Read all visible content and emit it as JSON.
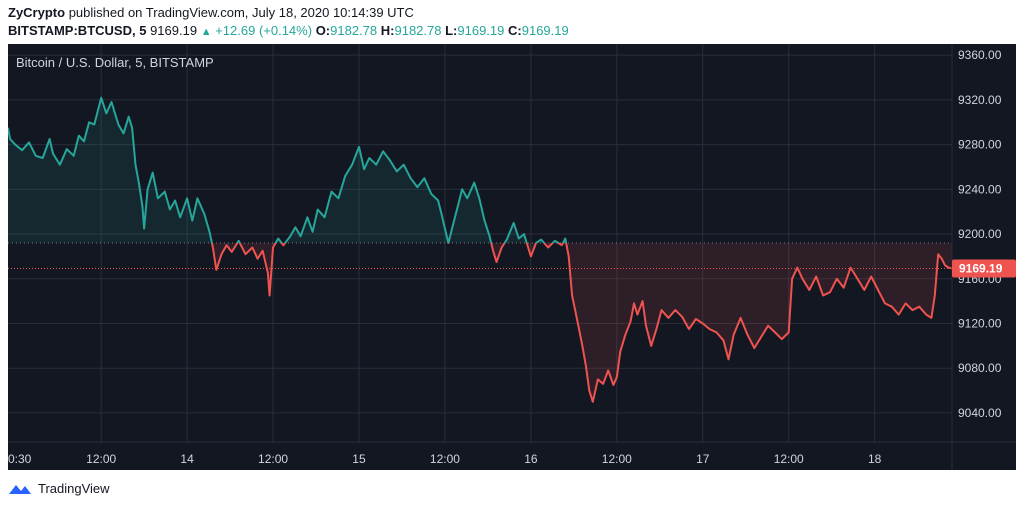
{
  "header": {
    "publisher": "ZyCrypto",
    "published_text": "published on TradingView.com, July 18, 2020 10:14:39 UTC",
    "symbol": "BITSTAMP:BTCUSD, 5",
    "last": "9169.19",
    "change": "+12.69 (+0.14%)",
    "o_label": "O:",
    "o_value": "9182.78",
    "h_label": "H:",
    "h_value": "9182.78",
    "l_label": "L:",
    "l_value": "9169.19",
    "c_label": "C:",
    "c_value": "9169.19"
  },
  "footer": {
    "brand": "TradingView",
    "logo_icon": "tradingview-logo-icon"
  },
  "chart_data": {
    "type": "area",
    "title": "Bitcoin / U.S. Dollar, 5, BITSTAMP",
    "baseline": 9192,
    "current_price": 9169.19,
    "current_price_label": "9169.19",
    "ylim": [
      9014,
      9370
    ],
    "yticks": [
      9040,
      9080,
      9120,
      9160,
      9200,
      9240,
      9280,
      9320,
      9360
    ],
    "ytick_labels": [
      "9040.00",
      "9080.00",
      "9120.00",
      "9160.00",
      "9200.00",
      "9240.00",
      "9280.00",
      "9320.00",
      "9360.00"
    ],
    "xlim": [
      12.958,
      18.45
    ],
    "xticks": [
      {
        "x": 12.958,
        "label": "0:30"
      },
      {
        "x": 13.5,
        "label": "12:00"
      },
      {
        "x": 14.0,
        "label": "14"
      },
      {
        "x": 14.5,
        "label": "12:00"
      },
      {
        "x": 15.0,
        "label": "15"
      },
      {
        "x": 15.5,
        "label": "12:00"
      },
      {
        "x": 16.0,
        "label": "16"
      },
      {
        "x": 16.5,
        "label": "12:00"
      },
      {
        "x": 17.0,
        "label": "17"
      },
      {
        "x": 17.5,
        "label": "12:00"
      },
      {
        "x": 18.0,
        "label": "18"
      }
    ],
    "colors": {
      "up": "#26a69a",
      "down": "#ef5350",
      "background": "#131722",
      "grid": "#2a2e39",
      "axis_text": "#d1d4dc"
    },
    "points": [
      [
        12.958,
        9295
      ],
      [
        12.97,
        9285
      ],
      [
        13.0,
        9280
      ],
      [
        13.04,
        9275
      ],
      [
        13.08,
        9282
      ],
      [
        13.12,
        9270
      ],
      [
        13.16,
        9268
      ],
      [
        13.2,
        9285
      ],
      [
        13.22,
        9272
      ],
      [
        13.26,
        9262
      ],
      [
        13.3,
        9276
      ],
      [
        13.34,
        9270
      ],
      [
        13.37,
        9288
      ],
      [
        13.4,
        9283
      ],
      [
        13.43,
        9300
      ],
      [
        13.46,
        9298
      ],
      [
        13.5,
        9322
      ],
      [
        13.53,
        9308
      ],
      [
        13.56,
        9318
      ],
      [
        13.6,
        9298
      ],
      [
        13.63,
        9290
      ],
      [
        13.66,
        9305
      ],
      [
        13.68,
        9295
      ],
      [
        13.7,
        9262
      ],
      [
        13.72,
        9245
      ],
      [
        13.74,
        9225
      ],
      [
        13.75,
        9205
      ],
      [
        13.77,
        9240
      ],
      [
        13.8,
        9255
      ],
      [
        13.83,
        9232
      ],
      [
        13.87,
        9238
      ],
      [
        13.9,
        9222
      ],
      [
        13.93,
        9230
      ],
      [
        13.96,
        9215
      ],
      [
        14.0,
        9232
      ],
      [
        14.03,
        9212
      ],
      [
        14.06,
        9232
      ],
      [
        14.1,
        9218
      ],
      [
        14.13,
        9202
      ],
      [
        14.15,
        9188
      ],
      [
        14.17,
        9168
      ],
      [
        14.2,
        9182
      ],
      [
        14.23,
        9190
      ],
      [
        14.26,
        9184
      ],
      [
        14.3,
        9194
      ],
      [
        14.34,
        9182
      ],
      [
        14.38,
        9188
      ],
      [
        14.41,
        9178
      ],
      [
        14.44,
        9185
      ],
      [
        14.47,
        9165
      ],
      [
        14.48,
        9145
      ],
      [
        14.5,
        9188
      ],
      [
        14.53,
        9196
      ],
      [
        14.56,
        9190
      ],
      [
        14.6,
        9198
      ],
      [
        14.63,
        9206
      ],
      [
        14.66,
        9198
      ],
      [
        14.7,
        9215
      ],
      [
        14.73,
        9202
      ],
      [
        14.76,
        9222
      ],
      [
        14.8,
        9215
      ],
      [
        14.84,
        9238
      ],
      [
        14.88,
        9232
      ],
      [
        14.92,
        9252
      ],
      [
        14.96,
        9262
      ],
      [
        15.0,
        9278
      ],
      [
        15.03,
        9258
      ],
      [
        15.06,
        9268
      ],
      [
        15.1,
        9262
      ],
      [
        15.14,
        9274
      ],
      [
        15.18,
        9266
      ],
      [
        15.22,
        9256
      ],
      [
        15.26,
        9262
      ],
      [
        15.3,
        9250
      ],
      [
        15.34,
        9242
      ],
      [
        15.38,
        9250
      ],
      [
        15.42,
        9236
      ],
      [
        15.46,
        9230
      ],
      [
        15.48,
        9218
      ],
      [
        15.5,
        9205
      ],
      [
        15.52,
        9192
      ],
      [
        15.55,
        9210
      ],
      [
        15.58,
        9228
      ],
      [
        15.6,
        9240
      ],
      [
        15.63,
        9232
      ],
      [
        15.67,
        9246
      ],
      [
        15.7,
        9232
      ],
      [
        15.73,
        9212
      ],
      [
        15.76,
        9198
      ],
      [
        15.78,
        9185
      ],
      [
        15.8,
        9175
      ],
      [
        15.83,
        9188
      ],
      [
        15.86,
        9195
      ],
      [
        15.9,
        9210
      ],
      [
        15.93,
        9196
      ],
      [
        15.96,
        9200
      ],
      [
        16.0,
        9180
      ],
      [
        16.03,
        9192
      ],
      [
        16.06,
        9195
      ],
      [
        16.1,
        9188
      ],
      [
        16.14,
        9194
      ],
      [
        16.18,
        9190
      ],
      [
        16.2,
        9196
      ],
      [
        16.22,
        9180
      ],
      [
        16.24,
        9145
      ],
      [
        16.26,
        9130
      ],
      [
        16.28,
        9115
      ],
      [
        16.3,
        9100
      ],
      [
        16.32,
        9082
      ],
      [
        16.34,
        9060
      ],
      [
        16.36,
        9050
      ],
      [
        16.39,
        9070
      ],
      [
        16.42,
        9066
      ],
      [
        16.45,
        9078
      ],
      [
        16.48,
        9065
      ],
      [
        16.5,
        9072
      ],
      [
        16.52,
        9095
      ],
      [
        16.55,
        9110
      ],
      [
        16.58,
        9122
      ],
      [
        16.6,
        9138
      ],
      [
        16.62,
        9128
      ],
      [
        16.65,
        9140
      ],
      [
        16.67,
        9118
      ],
      [
        16.7,
        9100
      ],
      [
        16.73,
        9115
      ],
      [
        16.76,
        9132
      ],
      [
        16.8,
        9125
      ],
      [
        16.84,
        9132
      ],
      [
        16.88,
        9126
      ],
      [
        16.92,
        9115
      ],
      [
        16.96,
        9124
      ],
      [
        17.0,
        9120
      ],
      [
        17.04,
        9115
      ],
      [
        17.08,
        9112
      ],
      [
        17.12,
        9105
      ],
      [
        17.15,
        9088
      ],
      [
        17.18,
        9110
      ],
      [
        17.22,
        9125
      ],
      [
        17.26,
        9110
      ],
      [
        17.3,
        9098
      ],
      [
        17.34,
        9108
      ],
      [
        17.38,
        9118
      ],
      [
        17.42,
        9112
      ],
      [
        17.46,
        9106
      ],
      [
        17.5,
        9112
      ],
      [
        17.52,
        9160
      ],
      [
        17.55,
        9170
      ],
      [
        17.58,
        9160
      ],
      [
        17.62,
        9150
      ],
      [
        17.66,
        9162
      ],
      [
        17.7,
        9145
      ],
      [
        17.74,
        9148
      ],
      [
        17.78,
        9160
      ],
      [
        17.82,
        9152
      ],
      [
        17.86,
        9170
      ],
      [
        17.9,
        9160
      ],
      [
        17.94,
        9150
      ],
      [
        17.98,
        9162
      ],
      [
        18.02,
        9150
      ],
      [
        18.06,
        9138
      ],
      [
        18.1,
        9135
      ],
      [
        18.14,
        9128
      ],
      [
        18.18,
        9138
      ],
      [
        18.22,
        9132
      ],
      [
        18.26,
        9135
      ],
      [
        18.3,
        9128
      ],
      [
        18.33,
        9125
      ],
      [
        18.35,
        9145
      ],
      [
        18.37,
        9182
      ],
      [
        18.39,
        9178
      ],
      [
        18.41,
        9172
      ],
      [
        18.43,
        9170
      ],
      [
        18.45,
        9169.19
      ]
    ]
  }
}
